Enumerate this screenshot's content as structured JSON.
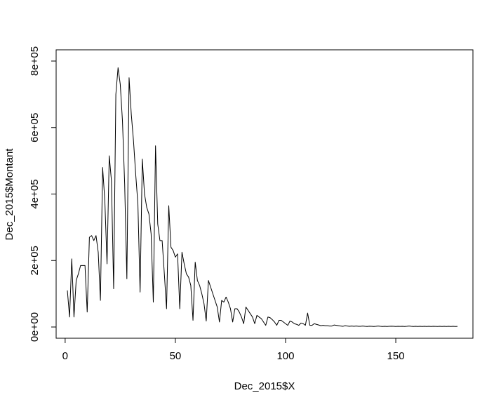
{
  "chart_data": {
    "type": "line",
    "title": "",
    "xlabel": "Dec_2015$X",
    "ylabel": "Dec_2015$Montant",
    "xlim": [
      1,
      178
    ],
    "ylim": [
      0,
      800000
    ],
    "x_ticks": [
      0,
      50,
      100,
      150
    ],
    "x_tick_labels": [
      "0",
      "50",
      "100",
      "150"
    ],
    "y_ticks": [
      0,
      200000,
      400000,
      600000,
      800000
    ],
    "y_tick_labels": [
      "0e+00",
      "2e+05",
      "4e+05",
      "6e+05",
      "8e+05"
    ],
    "grid": false,
    "legend": "none",
    "line_color": "#000000",
    "series": [
      {
        "x": [
          1,
          2,
          3,
          4,
          5,
          6,
          7,
          8,
          9,
          10,
          11,
          12,
          13,
          14,
          15,
          16,
          17,
          18,
          19,
          20,
          21,
          22,
          23,
          24,
          25,
          26,
          27,
          28,
          29,
          30,
          31,
          32,
          33,
          34,
          35,
          36,
          37,
          38,
          39,
          40,
          41,
          42,
          43,
          44,
          45,
          46,
          47,
          48,
          49,
          50,
          51,
          52,
          53,
          54,
          55,
          56,
          57,
          58,
          59,
          60,
          61,
          62,
          63,
          64,
          65,
          66,
          67,
          68,
          69,
          70,
          71,
          72,
          73,
          74,
          75,
          76,
          77,
          78,
          79,
          80,
          81,
          82,
          83,
          84,
          85,
          86,
          87,
          88,
          89,
          90,
          91,
          92,
          93,
          94,
          95,
          96,
          97,
          98,
          99,
          100,
          101,
          102,
          103,
          104,
          105,
          106,
          107,
          108,
          109,
          110,
          111,
          112,
          113,
          114,
          115,
          116,
          117,
          118,
          119,
          120,
          121,
          122,
          123,
          124,
          125,
          126,
          127,
          128,
          129,
          130,
          131,
          132,
          133,
          134,
          135,
          136,
          137,
          138,
          139,
          140,
          141,
          142,
          143,
          144,
          145,
          146,
          147,
          148,
          149,
          150,
          151,
          152,
          153,
          154,
          155,
          156,
          157,
          158,
          159,
          160,
          161,
          162,
          163,
          164,
          165,
          166,
          167,
          168,
          169,
          170,
          171,
          172,
          173,
          174,
          175,
          176,
          177,
          178
        ],
        "y": [
          110000,
          30000,
          205000,
          30000,
          140000,
          160000,
          185000,
          185000,
          185000,
          45000,
          270000,
          275000,
          260000,
          275000,
          225000,
          80000,
          480000,
          380000,
          190000,
          515000,
          440000,
          115000,
          700000,
          780000,
          730000,
          620000,
          430000,
          145000,
          750000,
          640000,
          560000,
          460000,
          370000,
          105000,
          505000,
          400000,
          360000,
          340000,
          280000,
          75000,
          545000,
          310000,
          260000,
          260000,
          160000,
          55000,
          365000,
          240000,
          230000,
          210000,
          220000,
          55000,
          225000,
          190000,
          160000,
          150000,
          125000,
          20000,
          195000,
          140000,
          125000,
          100000,
          70000,
          18000,
          140000,
          120000,
          100000,
          80000,
          60000,
          15000,
          80000,
          75000,
          90000,
          75000,
          55000,
          15000,
          55000,
          55000,
          45000,
          30000,
          10000,
          60000,
          50000,
          40000,
          30000,
          10000,
          35000,
          30000,
          25000,
          15000,
          5000,
          30000,
          28000,
          22000,
          15000,
          5000,
          20000,
          20000,
          15000,
          10000,
          5000,
          18000,
          15000,
          10000,
          8000,
          5000,
          12000,
          10000,
          5000,
          42000,
          5000,
          5000,
          10000,
          8000,
          6000,
          4000,
          5000,
          4000,
          4000,
          3000,
          3000,
          6000,
          5000,
          4000,
          3000,
          2000,
          4000,
          3000,
          2000,
          3000,
          2000,
          3000,
          2000,
          2000,
          3000,
          2000,
          1500,
          2500,
          2000,
          1500,
          2000,
          3000,
          2000,
          1500,
          2000,
          1500,
          2000,
          2500,
          2000,
          1500,
          2000,
          1800,
          2000,
          1500,
          2000,
          3000,
          2000,
          1500,
          2000,
          1500,
          2000,
          1500,
          2000,
          1500,
          2000,
          1500,
          2000,
          1800,
          1500,
          2000,
          1500,
          2000,
          1500,
          2000,
          1500,
          2000,
          1500,
          1800
        ]
      }
    ]
  }
}
